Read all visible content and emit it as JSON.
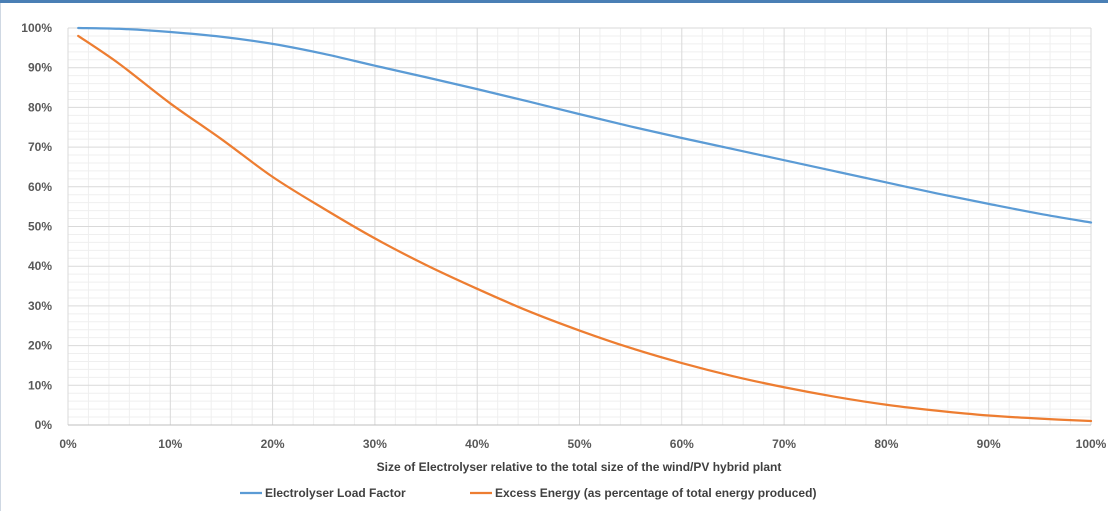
{
  "chart_data": {
    "type": "line",
    "title": "",
    "xlabel": "Size of Electrolyser relative to the total size of the wind/PV hybrid plant",
    "ylabel": "",
    "xlim": [
      0,
      100
    ],
    "ylim": [
      0,
      100
    ],
    "x_ticks": [
      "0%",
      "10%",
      "20%",
      "30%",
      "40%",
      "50%",
      "60%",
      "70%",
      "80%",
      "90%",
      "100%"
    ],
    "y_ticks": [
      "0%",
      "10%",
      "20%",
      "30%",
      "40%",
      "50%",
      "60%",
      "70%",
      "80%",
      "90%",
      "100%"
    ],
    "grid": "major and minor",
    "legend_position": "bottom",
    "series": [
      {
        "name": "Electrolyser Load Factor",
        "color": "#5b9bd5",
        "x": [
          1,
          5,
          10,
          15,
          20,
          25,
          30,
          35,
          40,
          45,
          50,
          55,
          60,
          65,
          70,
          75,
          80,
          85,
          90,
          95,
          100
        ],
        "y": [
          100,
          99.8,
          99,
          97.8,
          96,
          93.5,
          90.5,
          87.6,
          84.6,
          81.5,
          78.3,
          75.2,
          72.3,
          69.5,
          66.7,
          63.9,
          61.1,
          58.3,
          55.7,
          53.2,
          51
        ]
      },
      {
        "name": "Excess Energy (as percentage of total energy produced)",
        "color": "#ed7d31",
        "x": [
          1,
          5,
          10,
          15,
          20,
          25,
          30,
          35,
          40,
          45,
          50,
          55,
          60,
          65,
          70,
          75,
          80,
          85,
          90,
          95,
          100
        ],
        "y": [
          98,
          91,
          81,
          72,
          62.5,
          54.5,
          47,
          40.3,
          34.3,
          28.7,
          23.8,
          19.4,
          15.6,
          12.3,
          9.5,
          7.1,
          5.1,
          3.6,
          2.4,
          1.6,
          1
        ]
      }
    ]
  }
}
